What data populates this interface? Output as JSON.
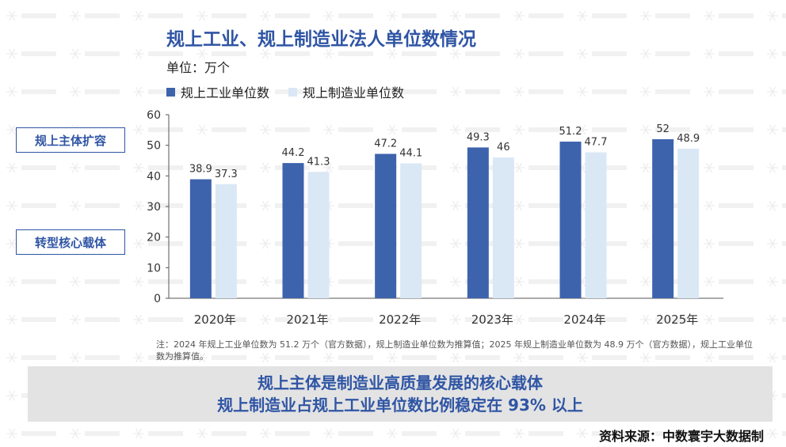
{
  "header": {
    "title": "规上工业、规上制造业法人单位数情况",
    "unit": "单位：万个"
  },
  "side_tags": [
    "规上主体扩容",
    "转型核心载体"
  ],
  "note": "注：2024 年规上工业单位数为 51.2 万个（官方数据），规上制造业单位数为推算值；2025 年规上制造业单位数为 48.9 万个（官方数据），规上工业单位数为推算值。",
  "banner": {
    "line1": "规上主体是制造业高质量发展的核心载体",
    "line2": "规上制造业占规上工业单位数比例稳定在 93% 以上"
  },
  "source": "资料来源：中数寰宇大数据制",
  "chart_data": {
    "type": "bar",
    "title": "规上工业、规上制造业法人单位数情况",
    "ylabel": "单位：万个",
    "xlabel": "",
    "categories": [
      "2020年",
      "2021年",
      "2022年",
      "2023年",
      "2024年",
      "2025年"
    ],
    "ylim": [
      0,
      60
    ],
    "yticks": [
      0,
      10,
      20,
      30,
      40,
      50,
      60
    ],
    "grid": false,
    "legend": "top-left",
    "series": [
      {
        "name": "规上工业单位数",
        "color": "#3d63ad",
        "values": [
          38.9,
          44.2,
          47.2,
          49.3,
          51.2,
          52
        ]
      },
      {
        "name": "规上制造业单位数",
        "color": "#dae7f5",
        "values": [
          37.3,
          41.3,
          44.1,
          46,
          47.7,
          48.9
        ]
      }
    ]
  }
}
